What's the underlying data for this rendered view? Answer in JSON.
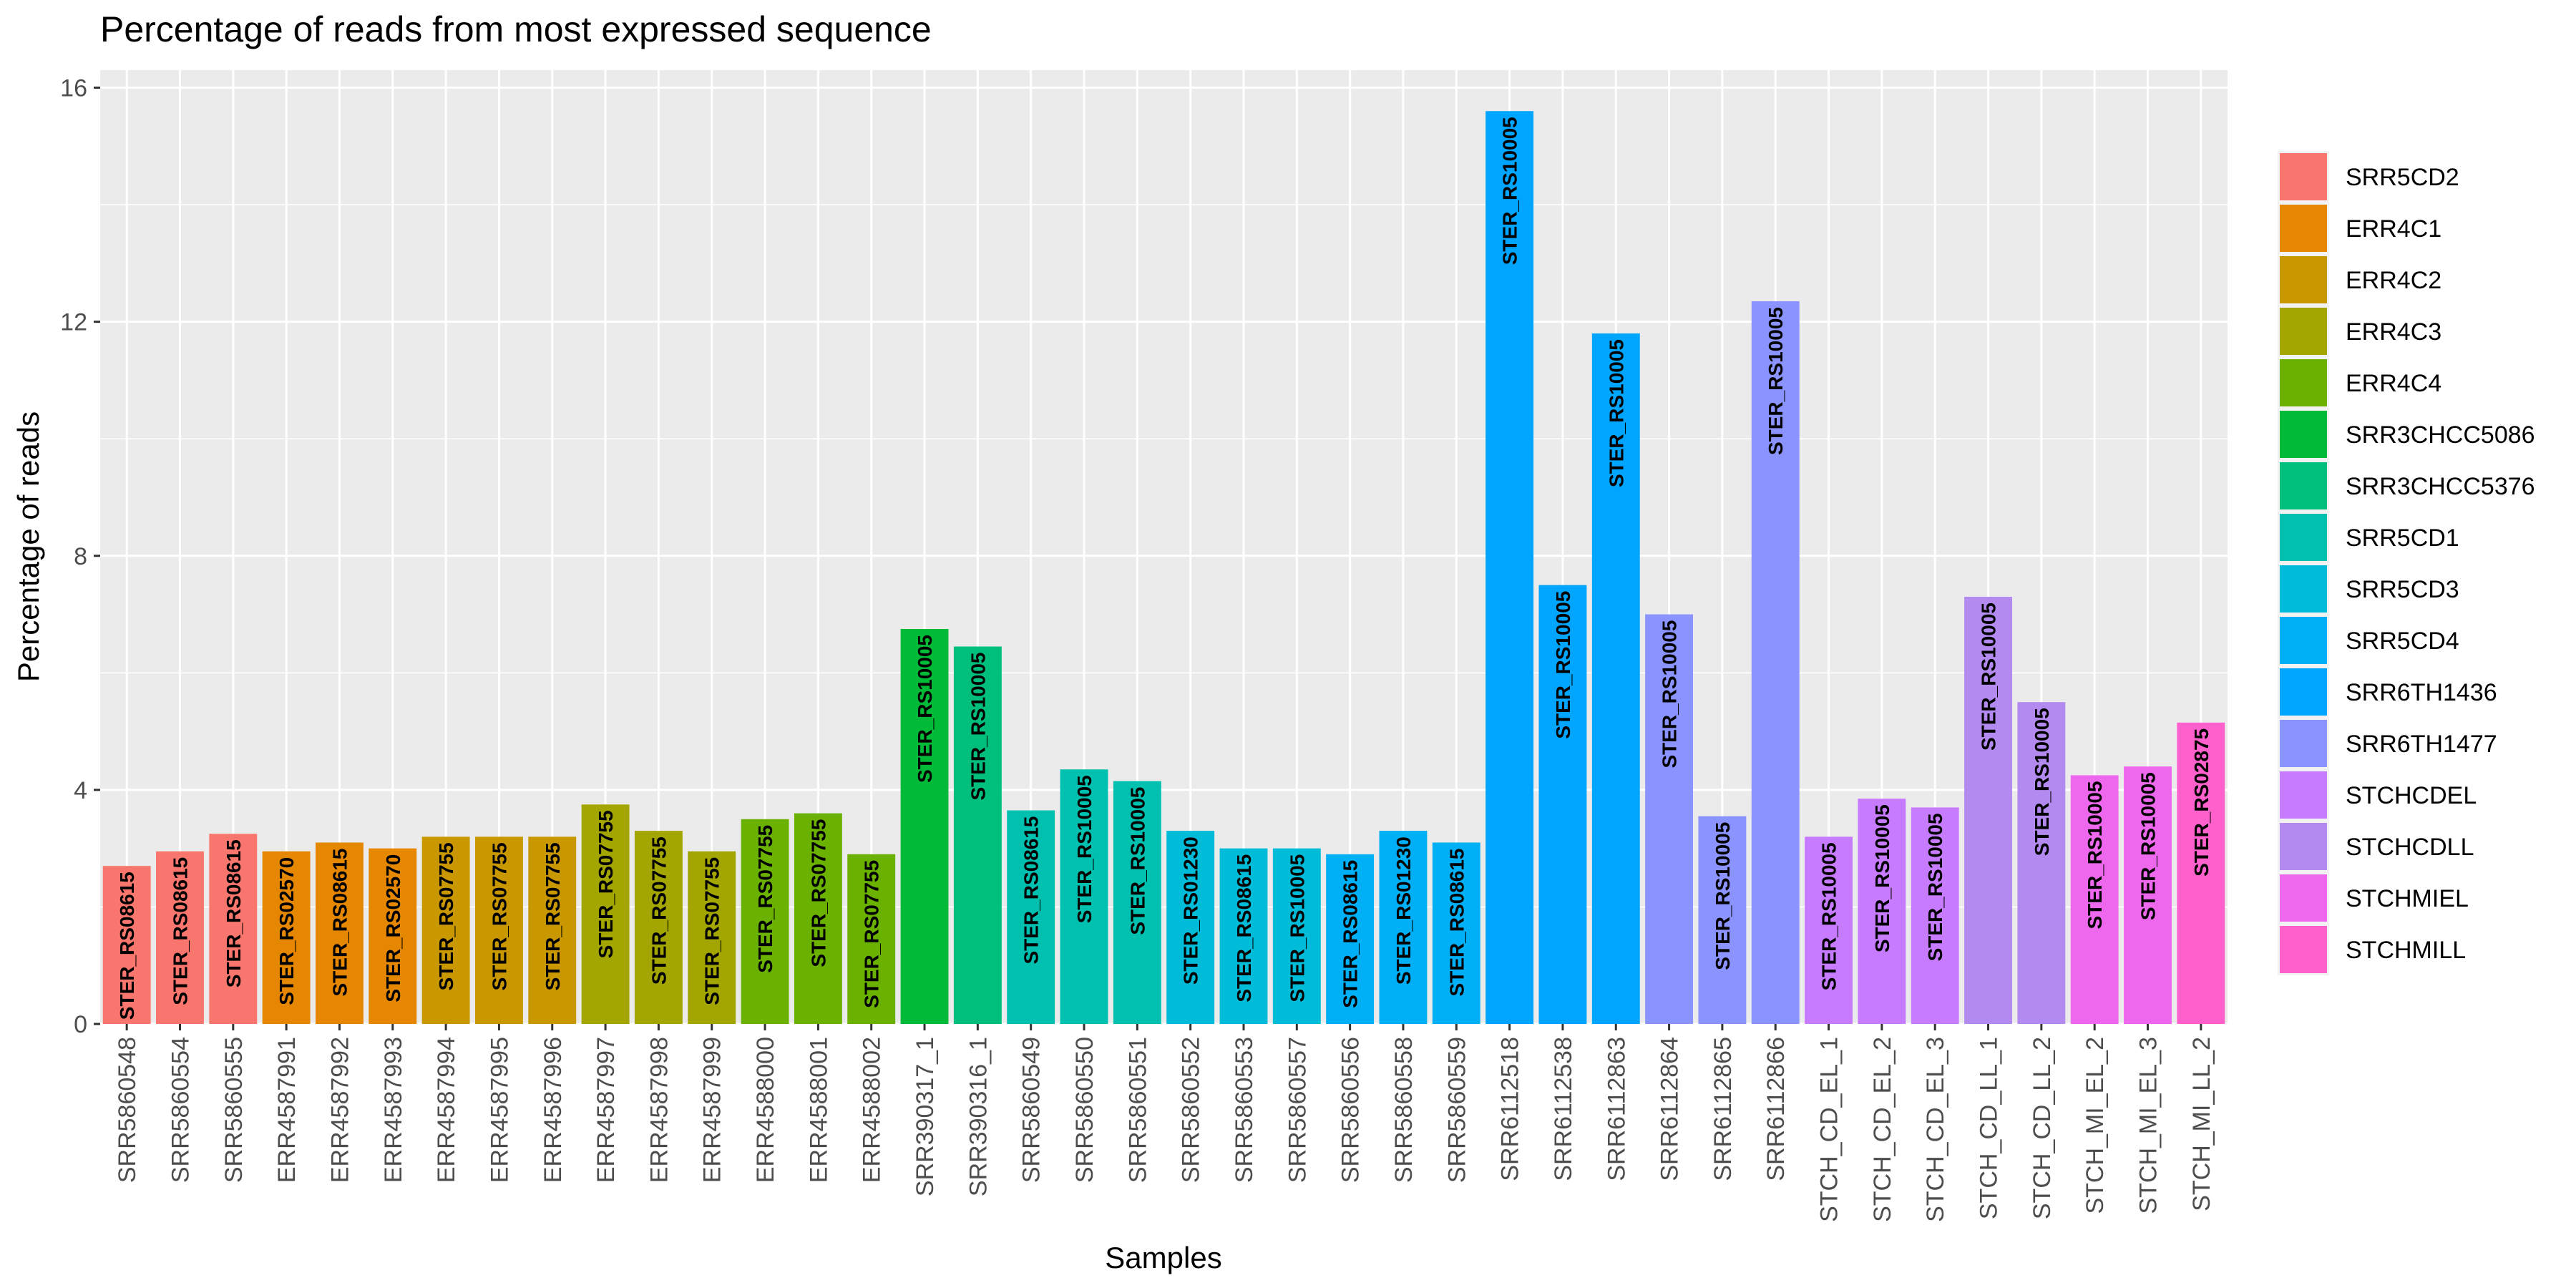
{
  "chart_data": {
    "type": "bar",
    "title": "Percentage of reads from most expressed sequence",
    "xlabel": "Samples",
    "ylabel": "Percentage of reads",
    "ylim": [
      0,
      16.3
    ],
    "yticks": [
      0,
      4,
      8,
      12,
      16
    ],
    "grid": true,
    "legend_position": "right",
    "categories": [
      "SRR5860548",
      "SRR5860554",
      "SRR5860555",
      "ERR4587991",
      "ERR4587992",
      "ERR4587993",
      "ERR4587994",
      "ERR4587995",
      "ERR4587996",
      "ERR4587997",
      "ERR4587998",
      "ERR4587999",
      "ERR4588000",
      "ERR4588001",
      "ERR4588002",
      "SRR390317_1",
      "SRR390316_1",
      "SRR5860549",
      "SRR5860550",
      "SRR5860551",
      "SRR5860552",
      "SRR5860553",
      "SRR5860557",
      "SRR5860556",
      "SRR5860558",
      "SRR5860559",
      "SRR6112518",
      "SRR6112538",
      "SRR6112863",
      "SRR6112864",
      "SRR6112865",
      "SRR6112866",
      "STCH_CD_EL_1",
      "STCH_CD_EL_2",
      "STCH_CD_EL_3",
      "STCH_CD_LL_1",
      "STCH_CD_LL_2",
      "STCH_MI_EL_2",
      "STCH_MI_EL_3",
      "STCH_MI_LL_2"
    ],
    "values": [
      2.7,
      2.95,
      3.25,
      2.95,
      3.1,
      3.0,
      3.2,
      3.2,
      3.2,
      3.75,
      3.3,
      2.95,
      3.5,
      3.6,
      2.9,
      6.75,
      6.45,
      3.65,
      4.35,
      4.15,
      3.3,
      3.0,
      3.0,
      2.9,
      3.3,
      3.1,
      15.6,
      7.5,
      11.8,
      7.0,
      3.55,
      12.35,
      3.2,
      3.85,
      3.7,
      7.3,
      5.5,
      4.25,
      4.4,
      5.15
    ],
    "bar_labels": [
      "STER_RS08615",
      "STER_RS08615",
      "STER_RS08615",
      "STER_RS02570",
      "STER_RS08615",
      "STER_RS02570",
      "STER_RS07755",
      "STER_RS07755",
      "STER_RS07755",
      "STER_RS07755",
      "STER_RS07755",
      "STER_RS07755",
      "STER_RS07755",
      "STER_RS07755",
      "STER_RS07755",
      "STER_RS10005",
      "STER_RS10005",
      "STER_RS08615",
      "STER_RS10005",
      "STER_RS10005",
      "STER_RS01230",
      "STER_RS08615",
      "STER_RS10005",
      "STER_RS08615",
      "STER_RS01230",
      "STER_RS08615",
      "STER_RS10005",
      "STER_RS10005",
      "STER_RS10005",
      "STER_RS10005",
      "STER_RS10005",
      "STER_RS10005",
      "STER_RS10005",
      "STER_RS10005",
      "STER_RS10005",
      "STER_RS10005",
      "STER_RS10005",
      "STER_RS10005",
      "STER_RS10005",
      "STER_RS02875"
    ],
    "groups": [
      "SRR5CD2",
      "SRR5CD2",
      "SRR5CD2",
      "ERR4C1",
      "ERR4C1",
      "ERR4C1",
      "ERR4C2",
      "ERR4C2",
      "ERR4C2",
      "ERR4C3",
      "ERR4C3",
      "ERR4C3",
      "ERR4C4",
      "ERR4C4",
      "ERR4C4",
      "SRR3CHCC5086",
      "SRR3CHCC5376",
      "SRR5CD1",
      "SRR5CD1",
      "SRR5CD1",
      "SRR5CD3",
      "SRR5CD3",
      "SRR5CD3",
      "SRR5CD4",
      "SRR5CD4",
      "SRR5CD4",
      "SRR6TH1436",
      "SRR6TH1436",
      "SRR6TH1436",
      "SRR6TH1477",
      "SRR6TH1477",
      "SRR6TH1477",
      "STCHCDEL",
      "STCHCDEL",
      "STCHCDEL",
      "STCHCDLL",
      "STCHCDLL",
      "STCHMIEL",
      "STCHMIEL",
      "STCHMILL"
    ],
    "legend": [
      {
        "name": "SRR5CD2",
        "color": "#F8766D"
      },
      {
        "name": "ERR4C1",
        "color": "#E58700"
      },
      {
        "name": "ERR4C2",
        "color": "#C99800"
      },
      {
        "name": "ERR4C3",
        "color": "#A3A500"
      },
      {
        "name": "ERR4C4",
        "color": "#6BB100"
      },
      {
        "name": "SRR3CHCC5086",
        "color": "#00BA38"
      },
      {
        "name": "SRR3CHCC5376",
        "color": "#00BF7D"
      },
      {
        "name": "SRR5CD1",
        "color": "#00C0AF"
      },
      {
        "name": "SRR5CD3",
        "color": "#00BCD8"
      },
      {
        "name": "SRR5CD4",
        "color": "#00B0F6"
      },
      {
        "name": "SRR6TH1436",
        "color": "#00A5FF"
      },
      {
        "name": "SRR6TH1477",
        "color": "#8B93FF"
      },
      {
        "name": "STCHCDEL",
        "color": "#C77CFF"
      },
      {
        "name": "STCHCDLL",
        "color": "#B38BF0"
      },
      {
        "name": "STCHMIEL",
        "color": "#ED68ED"
      },
      {
        "name": "STCHMILL",
        "color": "#FF61CC"
      }
    ]
  }
}
